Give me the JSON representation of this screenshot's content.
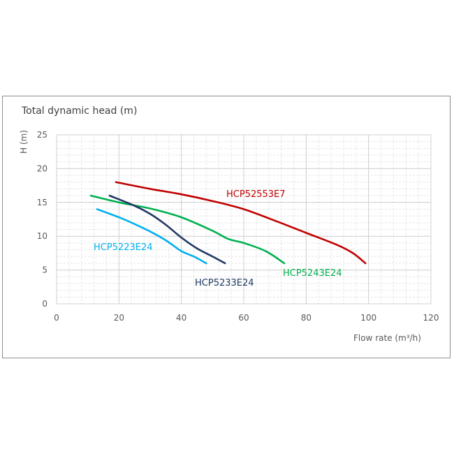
{
  "chart_data": {
    "type": "line",
    "title": "Total dynamic head (m)",
    "xlabel": "Flow rate (m³/h)",
    "ylabel": "H (m)",
    "xlim": [
      0,
      120
    ],
    "ylim": [
      0,
      25
    ],
    "xticks": [
      0,
      20,
      40,
      60,
      80,
      100,
      120
    ],
    "yticks": [
      0,
      5,
      10,
      15,
      20,
      25
    ],
    "grid": true,
    "legend": "inline labels",
    "series": [
      {
        "name": "HCP52553E7",
        "color": "#c00000",
        "x": [
          19,
          30,
          40,
          50,
          60,
          70,
          80,
          90,
          95,
          99
        ],
        "y": [
          18,
          17,
          16.2,
          15.2,
          14,
          12.3,
          10.5,
          8.7,
          7.5,
          6
        ]
      },
      {
        "name": "HCP5243E24",
        "color": "#00b050",
        "x": [
          11,
          20,
          30,
          40,
          50,
          55,
          60,
          67,
          73
        ],
        "y": [
          16,
          15,
          14.1,
          12.8,
          10.8,
          9.6,
          9,
          7.8,
          6
        ]
      },
      {
        "name": "HCP5233E24",
        "color": "#1f3864",
        "x": [
          17,
          25,
          30,
          35,
          40,
          45,
          50,
          54
        ],
        "y": [
          16,
          14.5,
          13.3,
          11.7,
          9.8,
          8.2,
          7,
          6
        ]
      },
      {
        "name": "HCP5223E24",
        "color": "#00b0f0",
        "x": [
          13,
          20,
          25,
          30,
          35,
          40,
          44,
          48
        ],
        "y": [
          14,
          12.8,
          11.8,
          10.7,
          9.4,
          7.8,
          7,
          6
        ]
      }
    ]
  }
}
